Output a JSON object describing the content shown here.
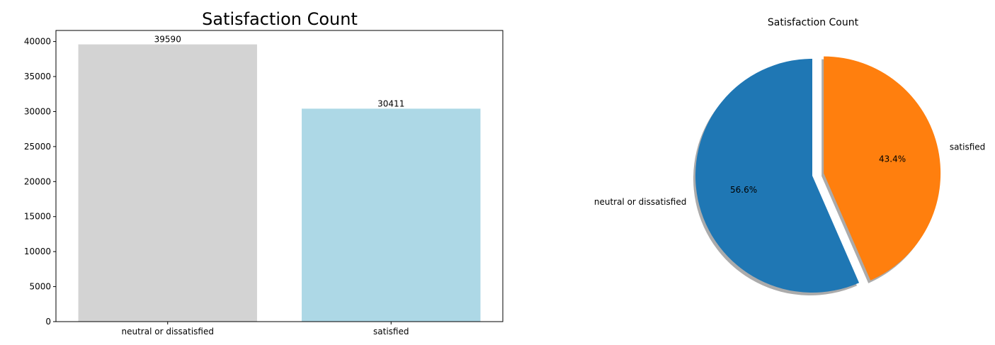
{
  "chart_data": [
    {
      "type": "bar",
      "title": "Satisfaction Count",
      "xlabel": "",
      "ylabel": "",
      "categories": [
        "neutral or dissatisfied",
        "satisfied"
      ],
      "values": [
        39590,
        30411
      ],
      "data_labels": [
        "39590",
        "30411"
      ],
      "colors": [
        "#d3d3d3",
        "#add8e6"
      ],
      "ylim": [
        0,
        41579
      ],
      "yticks": [
        0,
        5000,
        10000,
        15000,
        20000,
        25000,
        30000,
        35000,
        40000
      ],
      "ytick_labels": [
        "0",
        "5000",
        "10000",
        "15000",
        "20000",
        "25000",
        "30000",
        "35000",
        "40000"
      ],
      "grid": false,
      "legend": "none"
    },
    {
      "type": "pie",
      "title": "Satisfaction Count",
      "labels": [
        "neutral or dissatisfied",
        "satisfied"
      ],
      "values": [
        39590,
        30411
      ],
      "percent_labels": [
        "56.6%",
        "43.4%"
      ],
      "colors": [
        "#1f77b4",
        "#ff7f0e"
      ],
      "explode": [
        0,
        0.1
      ],
      "start_angle_degrees": 90,
      "shadow": true,
      "legend": "none"
    }
  ]
}
